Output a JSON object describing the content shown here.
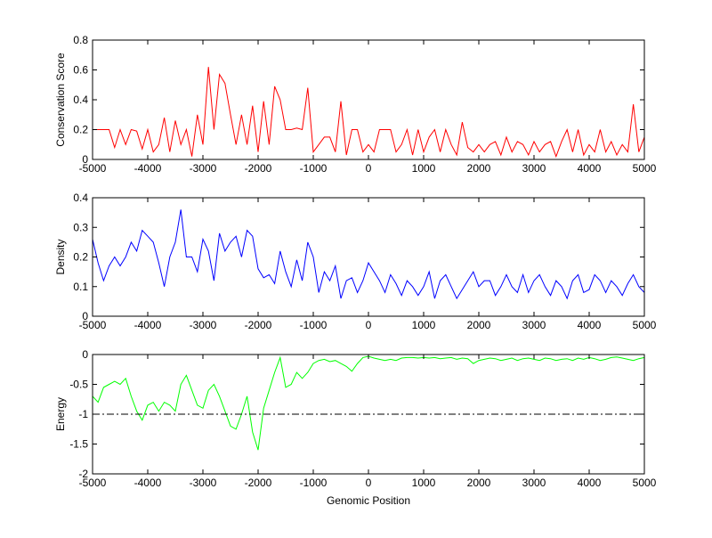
{
  "chart_data": [
    {
      "type": "line",
      "title": "",
      "xlabel": "",
      "ylabel": "Conservation Score",
      "xlim": [
        -5000,
        5000
      ],
      "ylim": [
        0,
        0.8
      ],
      "xticks": [
        "-5000",
        "-4000",
        "-3000",
        "-2000",
        "-1000",
        "0",
        "1000",
        "2000",
        "3000",
        "4000",
        "5000"
      ],
      "yticks": [
        "0",
        "0.2",
        "0.4",
        "0.6",
        "0.8"
      ],
      "color": "#ff0000",
      "x_start": -5000,
      "x_step": 100,
      "values": [
        0.2,
        0.2,
        0.2,
        0.2,
        0.08,
        0.2,
        0.1,
        0.2,
        0.19,
        0.07,
        0.2,
        0.05,
        0.1,
        0.28,
        0.05,
        0.26,
        0.1,
        0.2,
        0.02,
        0.3,
        0.1,
        0.62,
        0.2,
        0.57,
        0.51,
        0.3,
        0.1,
        0.3,
        0.1,
        0.36,
        0.05,
        0.39,
        0.1,
        0.49,
        0.4,
        0.2,
        0.2,
        0.21,
        0.2,
        0.48,
        0.05,
        0.1,
        0.15,
        0.15,
        0.05,
        0.39,
        0.03,
        0.2,
        0.2,
        0.05,
        0.1,
        0.05,
        0.2,
        0.2,
        0.2,
        0.05,
        0.1,
        0.2,
        0.03,
        0.2,
        0.05,
        0.15,
        0.2,
        0.05,
        0.2,
        0.1,
        0.03,
        0.25,
        0.08,
        0.05,
        0.1,
        0.05,
        0.1,
        0.12,
        0.03,
        0.15,
        0.05,
        0.12,
        0.1,
        0.03,
        0.12,
        0.05,
        0.1,
        0.12,
        0.02,
        0.12,
        0.2,
        0.05,
        0.2,
        0.03,
        0.1,
        0.05,
        0.2,
        0.05,
        0.12,
        0.03,
        0.1,
        0.05,
        0.37,
        0.05,
        0.15
      ]
    },
    {
      "type": "line",
      "title": "",
      "xlabel": "",
      "ylabel": "Density",
      "xlim": [
        -5000,
        5000
      ],
      "ylim": [
        0,
        0.4
      ],
      "xticks": [
        "-5000",
        "-4000",
        "-3000",
        "-2000",
        "-1000",
        "0",
        "1000",
        "2000",
        "3000",
        "4000",
        "5000"
      ],
      "yticks": [
        "0",
        "0.1",
        "0.2",
        "0.3",
        "0.4"
      ],
      "color": "#0000ff",
      "x_start": -5000,
      "x_step": 100,
      "values": [
        0.26,
        0.18,
        0.12,
        0.17,
        0.2,
        0.17,
        0.2,
        0.25,
        0.22,
        0.29,
        0.27,
        0.25,
        0.18,
        0.1,
        0.2,
        0.25,
        0.36,
        0.2,
        0.2,
        0.15,
        0.26,
        0.22,
        0.12,
        0.28,
        0.22,
        0.25,
        0.27,
        0.2,
        0.29,
        0.27,
        0.16,
        0.13,
        0.14,
        0.11,
        0.22,
        0.15,
        0.1,
        0.19,
        0.12,
        0.25,
        0.2,
        0.08,
        0.15,
        0.12,
        0.17,
        0.06,
        0.12,
        0.13,
        0.08,
        0.12,
        0.18,
        0.15,
        0.12,
        0.08,
        0.14,
        0.11,
        0.07,
        0.12,
        0.1,
        0.07,
        0.1,
        0.15,
        0.06,
        0.12,
        0.14,
        0.1,
        0.06,
        0.09,
        0.12,
        0.15,
        0.1,
        0.12,
        0.12,
        0.07,
        0.1,
        0.14,
        0.1,
        0.08,
        0.14,
        0.08,
        0.12,
        0.14,
        0.1,
        0.07,
        0.12,
        0.1,
        0.06,
        0.12,
        0.14,
        0.08,
        0.09,
        0.14,
        0.12,
        0.08,
        0.12,
        0.1,
        0.07,
        0.11,
        0.14,
        0.1,
        0.08
      ]
    },
    {
      "type": "line",
      "title": "",
      "xlabel": "Genomic Position",
      "ylabel": "Energy",
      "xlim": [
        -5000,
        5000
      ],
      "ylim": [
        -2,
        0
      ],
      "xticks": [
        "-5000",
        "-4000",
        "-3000",
        "-2000",
        "-1000",
        "0",
        "1000",
        "2000",
        "3000",
        "4000",
        "5000"
      ],
      "yticks": [
        "-2",
        "-1.5",
        "-1",
        "-0.5",
        "0"
      ],
      "color": "#00ff00",
      "reference_line": {
        "y": -1,
        "style": "dash-dot",
        "color": "#000000"
      },
      "x_start": -5000,
      "x_step": 100,
      "values": [
        -0.7,
        -0.8,
        -0.55,
        -0.5,
        -0.45,
        -0.5,
        -0.4,
        -0.7,
        -0.95,
        -1.1,
        -0.85,
        -0.8,
        -0.95,
        -0.8,
        -0.85,
        -0.95,
        -0.5,
        -0.35,
        -0.6,
        -0.85,
        -0.9,
        -0.6,
        -0.5,
        -0.7,
        -0.95,
        -1.2,
        -1.25,
        -1.0,
        -0.7,
        -1.3,
        -1.6,
        -0.9,
        -0.6,
        -0.3,
        -0.05,
        -0.55,
        -0.5,
        -0.3,
        -0.4,
        -0.3,
        -0.15,
        -0.1,
        -0.08,
        -0.12,
        -0.1,
        -0.15,
        -0.2,
        -0.28,
        -0.15,
        -0.05,
        -0.03,
        -0.06,
        -0.08,
        -0.1,
        -0.08,
        -0.1,
        -0.06,
        -0.05,
        -0.05,
        -0.06,
        -0.05,
        -0.06,
        -0.05,
        -0.07,
        -0.06,
        -0.05,
        -0.08,
        -0.06,
        -0.07,
        -0.15,
        -0.1,
        -0.08,
        -0.06,
        -0.07,
        -0.1,
        -0.08,
        -0.06,
        -0.1,
        -0.07,
        -0.06,
        -0.08,
        -0.1,
        -0.06,
        -0.07,
        -0.1,
        -0.08,
        -0.07,
        -0.1,
        -0.06,
        -0.08,
        -0.05,
        -0.07,
        -0.1,
        -0.08,
        -0.05,
        -0.04,
        -0.06,
        -0.08,
        -0.1,
        -0.07,
        -0.05
      ]
    }
  ]
}
